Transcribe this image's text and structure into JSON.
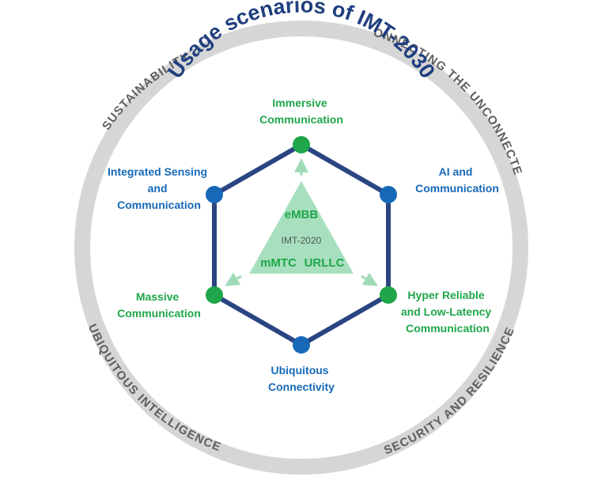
{
  "title": "Usage scenarios of IMT-2030",
  "ring_labels": {
    "top_left": "SUSTAINABILITY",
    "top_right": "CONNECTING THE UNCONNECTED",
    "bottom_left": "UBIQUITOUS INTELLIGENCE",
    "bottom_right": "SECURITY AND RESILIENCE"
  },
  "scenarios": {
    "top": [
      "Immersive",
      "Communication"
    ],
    "upper_right": [
      "AI and",
      "Communication"
    ],
    "lower_right": [
      "Hyper Reliable",
      "and Low-Latency",
      "Communication"
    ],
    "bottom": [
      "Ubiquitous",
      "Connectivity"
    ],
    "lower_left": [
      "Massive",
      "Communication"
    ],
    "upper_left": [
      "Integrated Sensing",
      "and",
      "Communication"
    ]
  },
  "triangle": {
    "top": "eMBB",
    "center": "IMT-2020",
    "left": "mMTC",
    "right": "URLLC"
  },
  "colors": {
    "ring": "#d6d6d6",
    "ring_text": "#5e5e5e",
    "title": "#1f3f7f",
    "hexagon": "#2b4582",
    "green": "#1fa64a",
    "blue": "#1769b8",
    "triangle_fill": "#a8e0bf",
    "triangle_text": "#1fa64a",
    "arrow": "#9fdbb8"
  }
}
